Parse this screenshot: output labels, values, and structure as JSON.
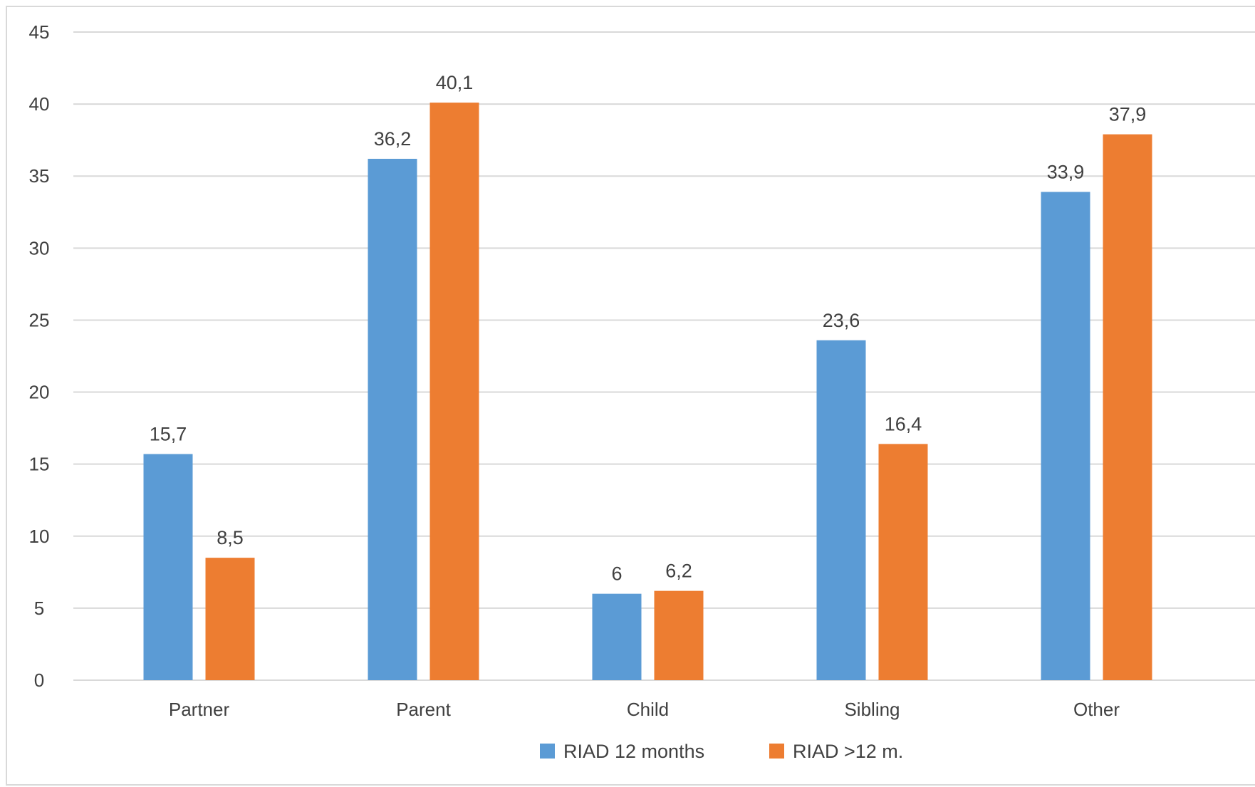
{
  "chart_data": {
    "type": "bar",
    "title": "",
    "xlabel": "",
    "ylabel": "",
    "categories": [
      "Partner",
      "Parent",
      "Child",
      "Sibling",
      "Other"
    ],
    "series": [
      {
        "name": "RIAD 12 months",
        "color": "#5b9bd5",
        "values": [
          15.7,
          36.2,
          6,
          23.6,
          33.9
        ],
        "labels": [
          "15,7",
          "36,2",
          "6",
          "23,6",
          "33,9"
        ]
      },
      {
        "name": "RIAD >12 m.",
        "color": "#ed7d31",
        "values": [
          8.5,
          40.1,
          6.2,
          16.4,
          37.9
        ],
        "labels": [
          "8,5",
          "40,1",
          "6,2",
          "16,4",
          "37,9"
        ]
      }
    ],
    "ylim": [
      0,
      45
    ],
    "yticks": [
      0,
      5,
      10,
      15,
      20,
      25,
      30,
      35,
      40,
      45
    ],
    "grid": true,
    "gridColor": "#d9d9d9",
    "legend": "bottom"
  }
}
